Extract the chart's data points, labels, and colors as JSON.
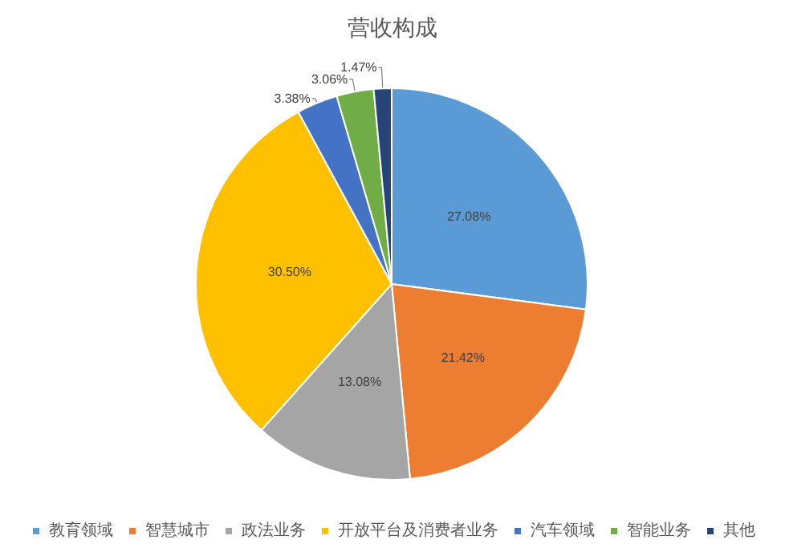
{
  "chart_data": {
    "type": "pie",
    "title": "营收构成",
    "categories": [
      "教育领域",
      "智慧城市",
      "政法业务",
      "开放平台及消费者业务",
      "汽车领域",
      "智能业务",
      "其他"
    ],
    "values": [
      27.08,
      21.42,
      13.08,
      30.5,
      3.38,
      3.06,
      1.47
    ],
    "value_labels": [
      "27.08%",
      "21.42%",
      "13.08%",
      "30.50%",
      "3.38%",
      "3.06%",
      "1.47%"
    ],
    "colors": [
      "#5b9bd5",
      "#ed7d31",
      "#a5a5a5",
      "#ffc000",
      "#4472c4",
      "#70ad47",
      "#264478"
    ],
    "legend": "bottom"
  }
}
